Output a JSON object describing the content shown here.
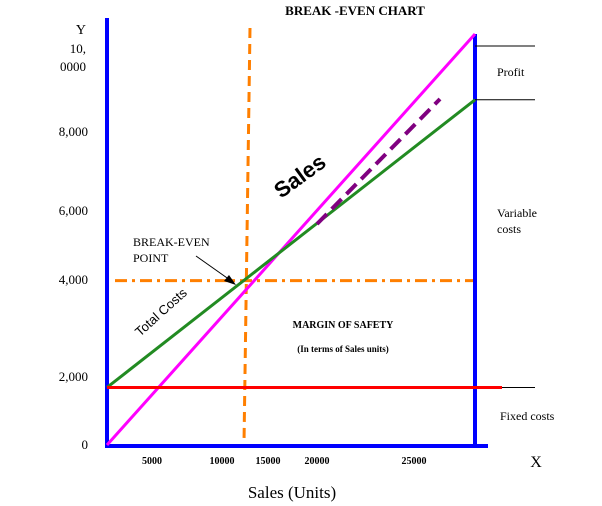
{
  "chart_data": {
    "type": "line",
    "title": "BREAK -EVEN CHART",
    "xlabel": "Sales (Units)",
    "x_axis_letter": "X",
    "y_axis_letter": "Y",
    "y_top_label_lines": [
      "10,",
      "0000"
    ],
    "y_ticks": [
      {
        "value": 8000,
        "label": "8,000"
      },
      {
        "value": 6000,
        "label": "6,000"
      },
      {
        "value": 4000,
        "label": "4,000"
      },
      {
        "value": 2000,
        "label": "2,000"
      },
      {
        "value": 0,
        "label": "0"
      }
    ],
    "x_ticks": [
      {
        "value": 5000,
        "label": "5000"
      },
      {
        "value": 10000,
        "label": "10000"
      },
      {
        "value": 15000,
        "label": "15000"
      },
      {
        "value": 20000,
        "label": "20000"
      },
      {
        "value": 25000,
        "label": "25000"
      }
    ],
    "xlim": [
      0,
      32000
    ],
    "ylim": [
      0,
      10000
    ],
    "x_end": 31000,
    "series": [
      {
        "name": "Sales",
        "color": "#ff00ff",
        "x": [
          0,
          31000
        ],
        "y": [
          0,
          10000
        ]
      },
      {
        "name": "Total Costs",
        "color": "#228b22",
        "x": [
          0,
          31000
        ],
        "y": [
          1400,
          8400
        ]
      },
      {
        "name": "Fixed costs",
        "color": "#ff0000",
        "x": [
          0,
          34000
        ],
        "y": [
          1400,
          1400
        ]
      }
    ],
    "margin_of_safety_line": {
      "color": "#800080",
      "x": [
        18000,
        27000
      ],
      "y": [
        5800,
        9100
      ]
    },
    "break_even": {
      "x": 12700,
      "y": 4000,
      "color": "#ff7f00"
    },
    "break_even_label": [
      "BREAK-EVEN",
      "POINT"
    ],
    "margin_text": "MARGIN OF SAFETY",
    "margin_subtext": "(In terms of Sales units)",
    "right_labels": {
      "profit": "Profit",
      "variable": [
        "Variable",
        "costs"
      ],
      "fixed": "Fixed costs"
    }
  }
}
